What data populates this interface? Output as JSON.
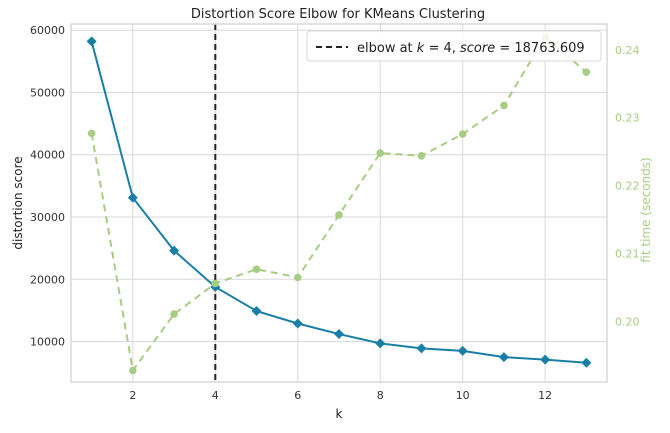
{
  "chart_data": {
    "type": "line",
    "title": "Distortion Score Elbow for KMeans Clustering",
    "xlabel": "k",
    "ylabel": "distortion score",
    "y2label": "fit time (seconds)",
    "x": [
      1,
      2,
      3,
      4,
      5,
      6,
      7,
      8,
      9,
      10,
      11,
      12,
      13
    ],
    "xlim": [
      0.5,
      13.5
    ],
    "ylim": [
      3500,
      61000
    ],
    "y2lim": [
      0.1911,
      0.2438
    ],
    "xticks": [
      "2",
      "4",
      "6",
      "8",
      "10",
      "12"
    ],
    "yticks": [
      "10000",
      "20000",
      "30000",
      "40000",
      "50000",
      "60000"
    ],
    "y2ticks": [
      "0.20",
      "0.21",
      "0.22",
      "0.23",
      "0.24"
    ],
    "series": [
      {
        "name": "distortion score",
        "axis": "left",
        "color": "#1a7fa6",
        "marker": "diamond",
        "values": [
          58200,
          33100,
          24600,
          18764,
          14900,
          12900,
          11200,
          9700,
          8900,
          8500,
          7500,
          7100,
          6600
        ]
      },
      {
        "name": "fit time (seconds)",
        "axis": "right",
        "color": "#a7cd85",
        "marker": "circle",
        "dashed": true,
        "values": [
          0.2277,
          0.1928,
          0.2011,
          0.2056,
          0.2077,
          0.2065,
          0.2157,
          0.2248,
          0.2244,
          0.2276,
          0.2318,
          0.2419,
          0.2367
        ]
      }
    ],
    "elbow": {
      "k": 4,
      "legend_prefix": "elbow at ",
      "legend_k": "k",
      "legend_k_value": " = 4, ",
      "legend_score": "score",
      "legend_score_value": " = 18763.609"
    },
    "legend_position": "top-right",
    "grid": true
  }
}
